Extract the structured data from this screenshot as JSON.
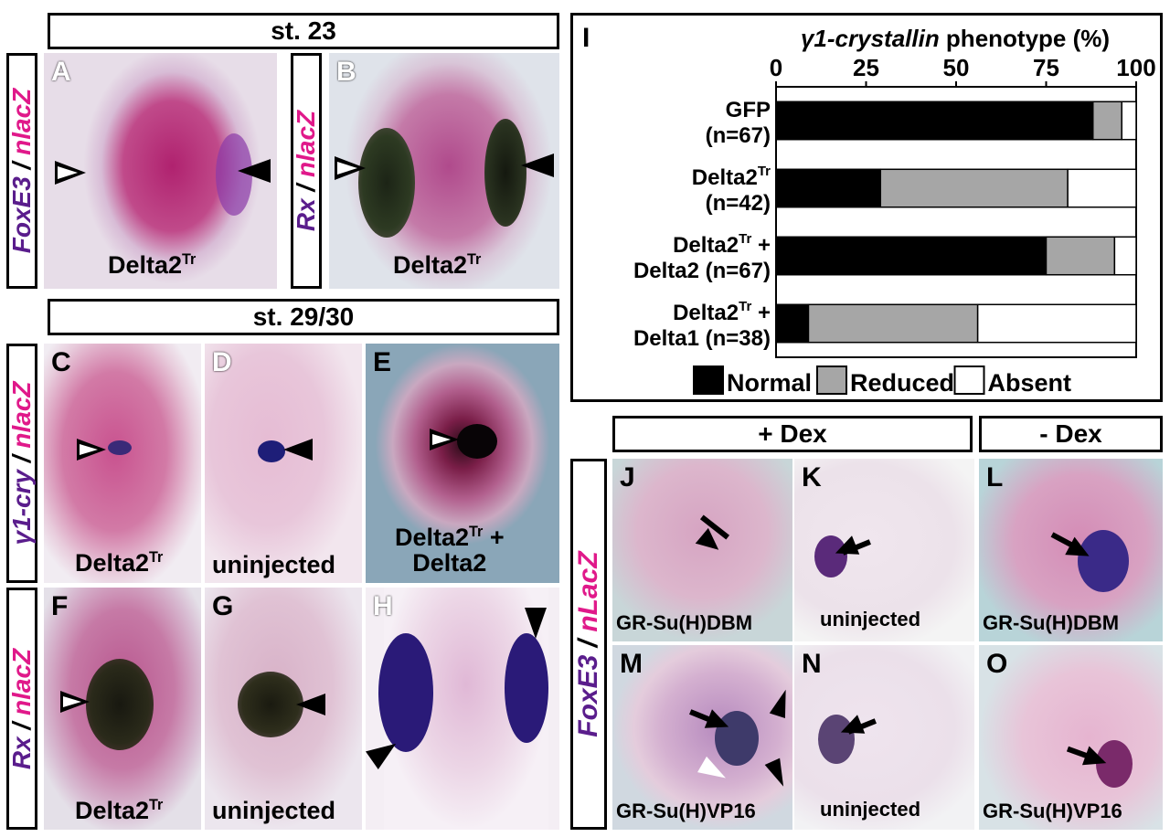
{
  "headers": {
    "st23": "st. 23",
    "st2930": "st. 29/30",
    "plus_dex": "+ Dex",
    "minus_dex": "- Dex"
  },
  "side_labels": {
    "a_gene": "FoxE3",
    "a_sep": " / ",
    "a_reporter": "nlacZ",
    "b_gene": "Rx",
    "b_sep": " / ",
    "b_reporter": "nlacZ",
    "c_gene": "γ1-cry",
    "c_sep": " / ",
    "c_reporter": "nlacZ",
    "f_gene": "Rx",
    "f_sep": " / ",
    "f_reporter": "nlacZ",
    "j_gene": "FoxE3",
    "j_sep": " / ",
    "j_reporter": "nLacZ"
  },
  "panels": {
    "A": {
      "letter": "A",
      "caption_main": "Delta2",
      "caption_sup": "Tr"
    },
    "B": {
      "letter": "B",
      "caption_main": "Delta2",
      "caption_sup": "Tr"
    },
    "C": {
      "letter": "C",
      "caption_main": "Delta2",
      "caption_sup": "Tr"
    },
    "D": {
      "letter": "D",
      "caption": "uninjected"
    },
    "E": {
      "letter": "E",
      "caption_main": "Delta2",
      "caption_sup": "Tr",
      "caption_tail": " +",
      "caption_line2": "Delta2"
    },
    "F": {
      "letter": "F",
      "caption_main": "Delta2",
      "caption_sup": "Tr"
    },
    "G": {
      "letter": "G",
      "caption": "uninjected"
    },
    "H": {
      "letter": "H"
    },
    "J": {
      "letter": "J",
      "caption": "GR-Su(H)DBM"
    },
    "K": {
      "letter": "K",
      "caption": "uninjected"
    },
    "L": {
      "letter": "L",
      "caption": "GR-Su(H)DBM"
    },
    "M": {
      "letter": "M",
      "caption": "GR-Su(H)VP16"
    },
    "N": {
      "letter": "N",
      "caption": "uninjected"
    },
    "O": {
      "letter": "O",
      "caption": "GR-Su(H)VP16"
    }
  },
  "chart_data": {
    "type": "bar",
    "orientation": "horizontal",
    "stacked": true,
    "panel_letter": "I",
    "title_italic": "γ1-crystallin",
    "title_rest": " phenotype (%)",
    "xlim": [
      0,
      100
    ],
    "xticks": [
      "0",
      "25",
      "50",
      "75",
      "100"
    ],
    "categories": [
      {
        "line1_main": "GFP",
        "line1_sup": "",
        "line1_tail": "",
        "line2": "(n=67)"
      },
      {
        "line1_main": "Delta2",
        "line1_sup": "Tr",
        "line1_tail": "",
        "line2": "(n=42)"
      },
      {
        "line1_main": "Delta2",
        "line1_sup": "Tr",
        "line1_tail": " +",
        "line2": "Delta2 (n=67)"
      },
      {
        "line1_main": "Delta2",
        "line1_sup": "Tr",
        "line1_tail": " +",
        "line2": "Delta1 (n=38)"
      }
    ],
    "series": [
      {
        "name": "Normal",
        "color": "#000000",
        "values": [
          88,
          29,
          75,
          9
        ]
      },
      {
        "name": "Reduced",
        "color": "#a6a6a6",
        "values": [
          8,
          52,
          19,
          47
        ]
      },
      {
        "name": "Absent",
        "color": "#ffffff",
        "values": [
          4,
          19,
          6,
          44
        ]
      }
    ],
    "legend": "bottom"
  }
}
